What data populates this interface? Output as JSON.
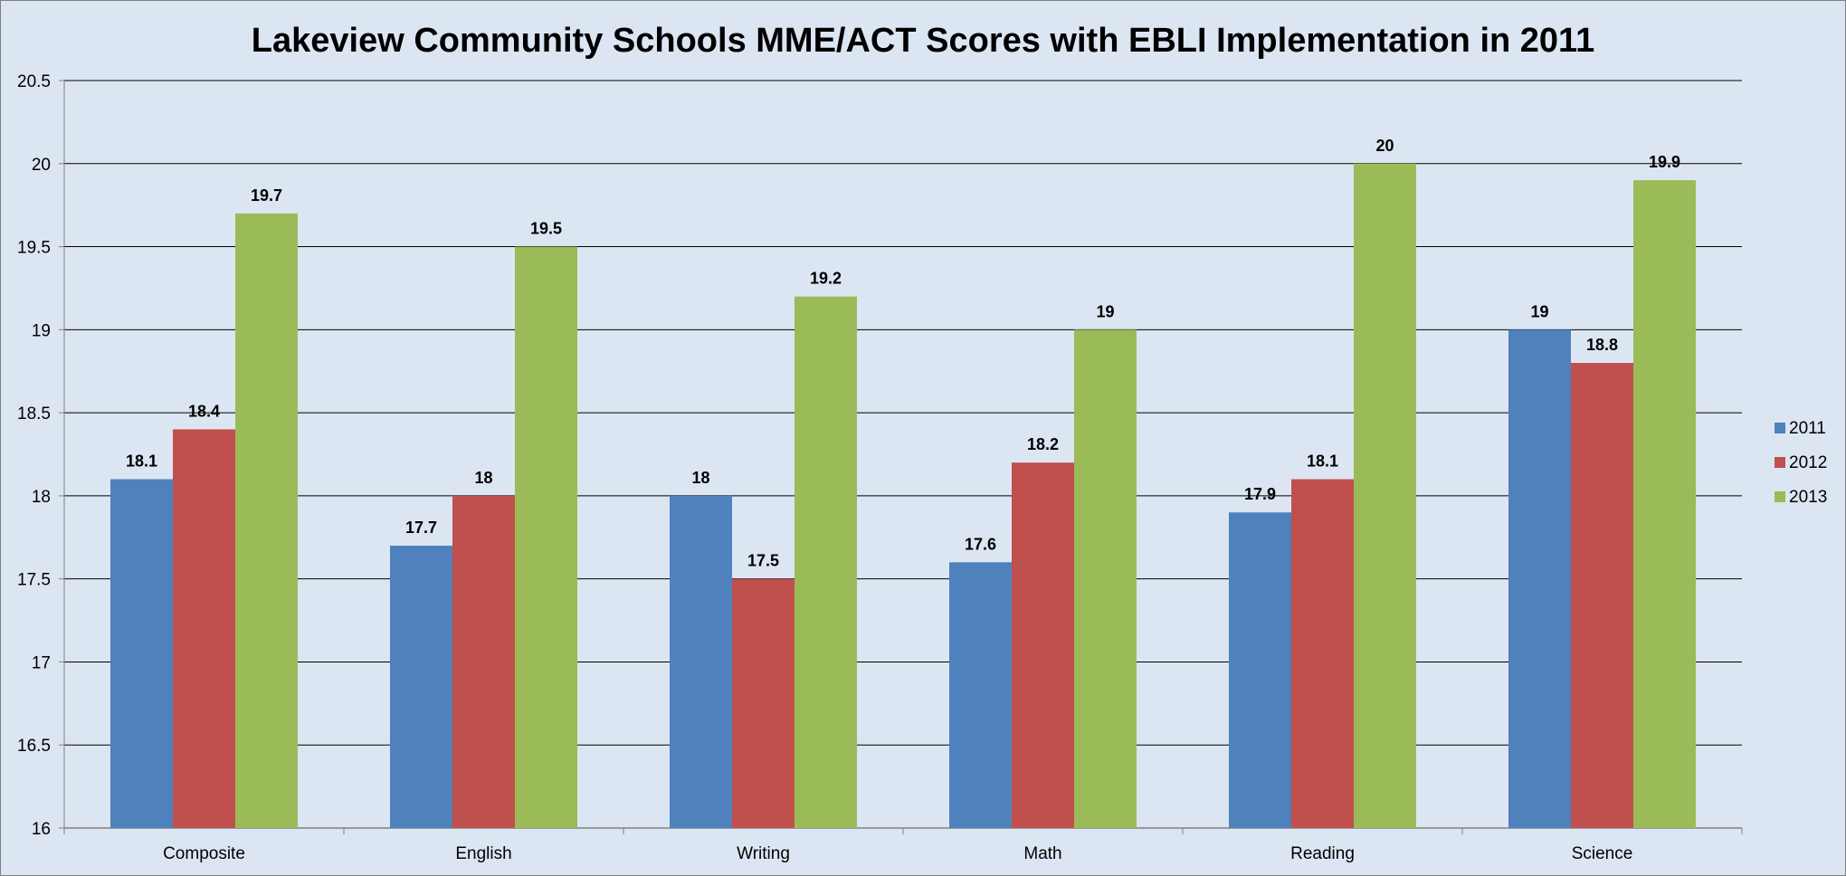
{
  "chart_data": {
    "type": "bar",
    "title": "Lakeview Community Schools MME/ACT Scores with EBLI Implementation in 2011",
    "xlabel": "",
    "ylabel": "",
    "ylim": [
      16,
      20.5
    ],
    "yticks": [
      "16",
      "16.5",
      "17",
      "17.5",
      "18",
      "18.5",
      "19",
      "19.5",
      "20",
      "20.5"
    ],
    "grid": true,
    "legend_position": "right",
    "categories": [
      "Composite",
      "English",
      "Writing",
      "Math",
      "Reading",
      "Science"
    ],
    "series": [
      {
        "name": "2011",
        "color": "#4f81bd",
        "values": [
          18.1,
          17.7,
          18,
          17.6,
          17.9,
          19
        ],
        "labels": [
          "18.1",
          "17.7",
          "18",
          "17.6",
          "17.9",
          "19"
        ]
      },
      {
        "name": "2012",
        "color": "#c0504d",
        "values": [
          18.4,
          18,
          17.5,
          18.2,
          18.1,
          18.8
        ],
        "labels": [
          "18.4",
          "18",
          "17.5",
          "18.2",
          "18.1",
          "18.8"
        ]
      },
      {
        "name": "2013",
        "color": "#9bbb59",
        "values": [
          19.7,
          19.5,
          19.2,
          19,
          20,
          19.9
        ],
        "labels": [
          "19.7",
          "19.5",
          "19.2",
          "19",
          "20",
          "19.9"
        ]
      }
    ]
  }
}
